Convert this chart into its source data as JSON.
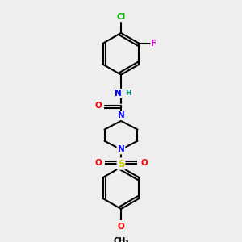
{
  "bg_color": "#eeeeee",
  "bond_color": "#000000",
  "bond_lw": 1.5,
  "atom_colors": {
    "N": "#0000ff",
    "O": "#ff0000",
    "Cl": "#00bb00",
    "F": "#cc00cc",
    "S": "#cccc00",
    "C": "#000000",
    "H": "#008080"
  },
  "font_size": 7.5
}
